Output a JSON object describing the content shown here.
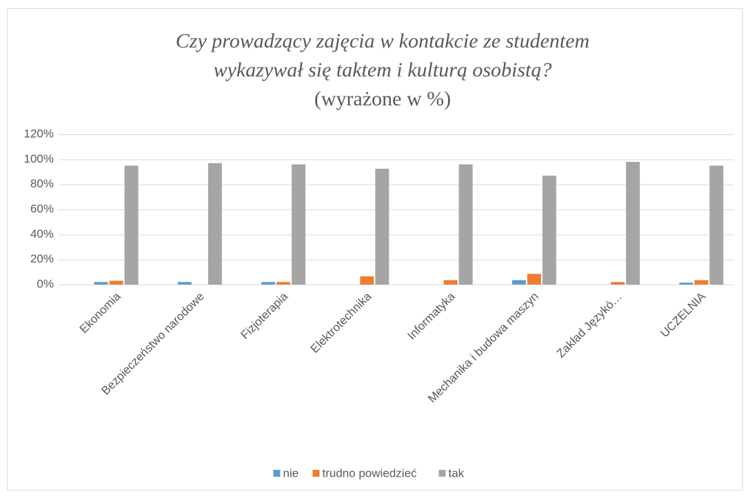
{
  "chart_data": {
    "type": "bar",
    "title": [
      "Czy prowadzący zajęcia w kontakcie ze studentem",
      "wykazywał się taktem i kulturą osobistą?"
    ],
    "subtitle": "(wyrażone  w %)",
    "categories": [
      "Ekonomia",
      "Bezpieczeństwo narodowe",
      "Fizjoterapia",
      "Elektrotechnika",
      "Informatyka",
      "Mechanika i budowa maszyn",
      "Zakład Językó…",
      "UCZELNIA"
    ],
    "series": [
      {
        "name": "nie",
        "color": "#5b9bd5",
        "values": [
          2,
          2,
          2,
          0,
          0,
          3.5,
          0,
          1.5
        ]
      },
      {
        "name": "trudno powiedzieć",
        "color": "#ed7d31",
        "values": [
          3,
          0,
          2,
          6.5,
          3.5,
          8.5,
          2,
          3.5
        ]
      },
      {
        "name": "tak",
        "color": "#a5a5a5",
        "values": [
          95,
          97,
          96,
          92.5,
          96,
          87,
          98,
          95
        ]
      }
    ],
    "ylim": [
      0,
      120
    ],
    "yticks": [
      {
        "value": 0,
        "label": "0%"
      },
      {
        "value": 20,
        "label": "20%"
      },
      {
        "value": 40,
        "label": "40%"
      },
      {
        "value": 60,
        "label": "60%"
      },
      {
        "value": 80,
        "label": "80%"
      },
      {
        "value": 100,
        "label": "100%"
      },
      {
        "value": 120,
        "label": "120%"
      }
    ],
    "grid": true,
    "legend": "bottom"
  }
}
